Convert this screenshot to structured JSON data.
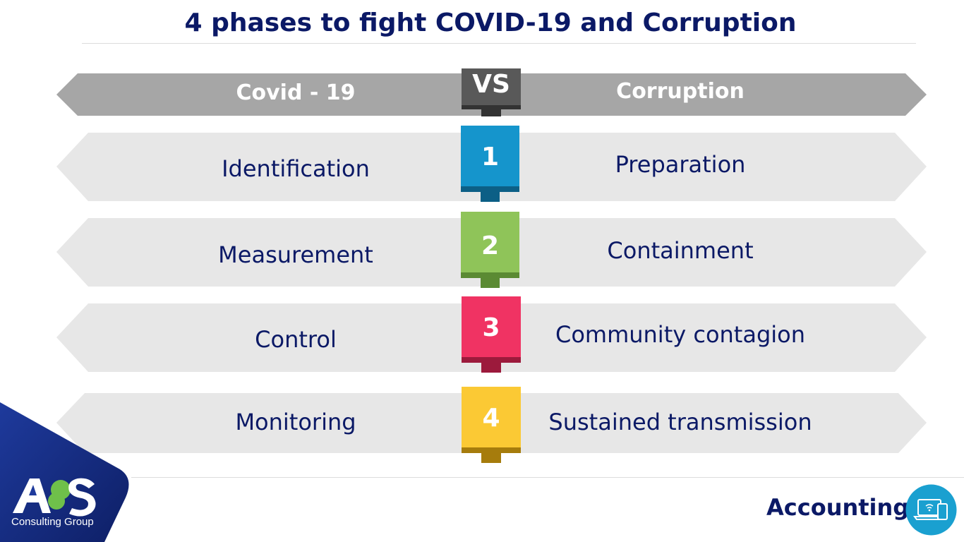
{
  "title": "4 phases to fight COVID-19 and Corruption",
  "header": {
    "left": "Covid - 19",
    "vs": "VS",
    "right": "Corruption"
  },
  "rows": [
    {
      "number": "1",
      "left": "Identification",
      "right": "Preparation",
      "color": "#1595cc"
    },
    {
      "number": "2",
      "left": "Measurement",
      "right": "Containment",
      "color": "#8fc459"
    },
    {
      "number": "3",
      "left": "Control",
      "right": "Community contagion",
      "color": "#f03363"
    },
    {
      "number": "4",
      "left": "Monitoring",
      "right": "Sustained transmission",
      "color": "#fbc934"
    }
  ],
  "footer": {
    "company_logo": "A&S",
    "company_tagline": "Consulting Group",
    "label": "Accounting",
    "icon": "laptop-tablet-icon"
  },
  "colors": {
    "navy": "#0b1966",
    "header_band": "#a6a6a6",
    "row_band": "#e7e7e7",
    "vs_badge": "#595959"
  }
}
